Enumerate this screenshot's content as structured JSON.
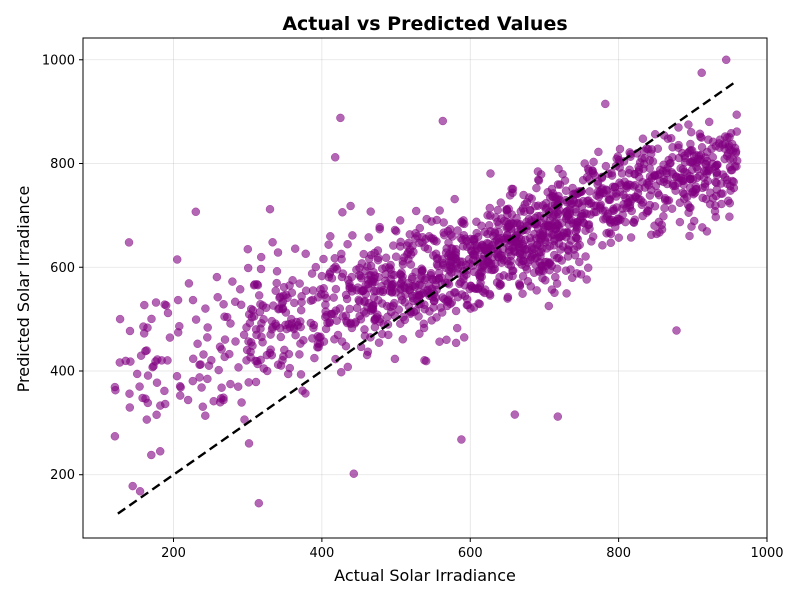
{
  "chart_data": {
    "type": "scatter",
    "title": "Actual vs Predicted Values",
    "xlabel": "Actual Solar Irradiance",
    "ylabel": "Predicted Solar Irradiance",
    "xlim": [
      78,
      1000
    ],
    "ylim": [
      78,
      1042
    ],
    "x_ticks": [
      200,
      400,
      600,
      800,
      1000
    ],
    "y_ticks": [
      200,
      400,
      600,
      800,
      1000
    ],
    "grid": true,
    "colors": {
      "points": "#800080",
      "reference_line": "#000000"
    },
    "reference_line": {
      "style": "dashed",
      "x": [
        125,
        958
      ],
      "y": [
        125,
        958
      ]
    },
    "point_count_approx": 1500,
    "density_sample": [
      {
        "x": [
          120,
          300
        ],
        "y_center": 430,
        "y_spread": 130,
        "n": 100
      },
      {
        "x": [
          300,
          450
        ],
        "y_center": 510,
        "y_spread": 110,
        "n": 200
      },
      {
        "x": [
          450,
          600
        ],
        "y_center": 570,
        "y_spread": 100,
        "n": 350
      },
      {
        "x": [
          600,
          750
        ],
        "y_center": 650,
        "y_spread": 90,
        "n": 450
      },
      {
        "x": [
          750,
          960
        ],
        "y_center": 760,
        "y_spread": 80,
        "n": 400
      }
    ],
    "notable_points": [
      {
        "x": 128,
        "y": 500
      },
      {
        "x": 140,
        "y": 648
      },
      {
        "x": 145,
        "y": 178
      },
      {
        "x": 155,
        "y": 168
      },
      {
        "x": 170,
        "y": 238
      },
      {
        "x": 205,
        "y": 615
      },
      {
        "x": 230,
        "y": 707
      },
      {
        "x": 315,
        "y": 145
      },
      {
        "x": 330,
        "y": 712
      },
      {
        "x": 425,
        "y": 888
      },
      {
        "x": 418,
        "y": 812
      },
      {
        "x": 443,
        "y": 202
      },
      {
        "x": 563,
        "y": 882
      },
      {
        "x": 588,
        "y": 268
      },
      {
        "x": 660,
        "y": 316
      },
      {
        "x": 718,
        "y": 312
      },
      {
        "x": 782,
        "y": 915
      },
      {
        "x": 878,
        "y": 478
      },
      {
        "x": 912,
        "y": 975
      },
      {
        "x": 945,
        "y": 1000
      },
      {
        "x": 958,
        "y": 820
      }
    ]
  }
}
